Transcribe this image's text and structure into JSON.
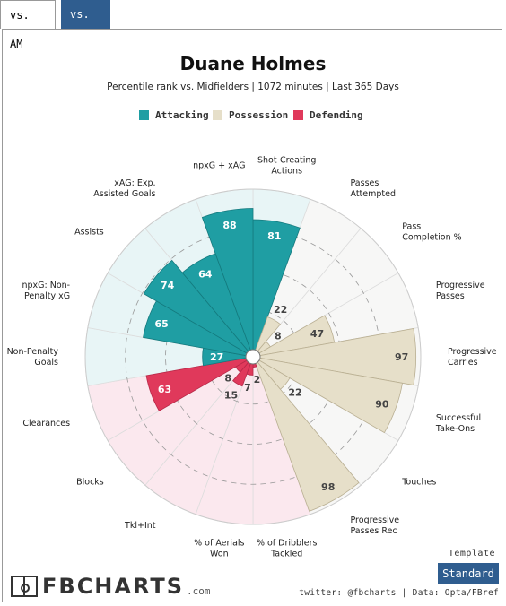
{
  "tabs": [
    {
      "label": "vs. AM",
      "active": false
    },
    {
      "label": "vs. MF",
      "active": true
    }
  ],
  "colors": {
    "attacking": "#1f9ea3",
    "possession": "#e6dfc9",
    "defending": "#e0395b",
    "attacking_bg": "#e8f5f6",
    "possession_bg": "#f7f7f6",
    "defending_bg": "#fbe8ee",
    "tab_active": "#2f5d8f"
  },
  "chart_data": {
    "type": "polar-bar",
    "title": "Duane Holmes",
    "subtitle": "Percentile rank vs. Midfielders | 1072 minutes | Last 365 Days",
    "range": [
      0,
      100
    ],
    "legend": [
      {
        "name": "Attacking",
        "color_key": "attacking"
      },
      {
        "name": "Possession",
        "color_key": "possession"
      },
      {
        "name": "Defending",
        "color_key": "defending"
      }
    ],
    "metrics": [
      {
        "label": "Shot-Creating Actions",
        "lines": [
          "Shot-Creating",
          "Actions"
        ],
        "value": 81,
        "group": "attacking"
      },
      {
        "label": "Passes Attempted",
        "lines": [
          "Passes",
          "Attempted"
        ],
        "value": 22,
        "group": "possession"
      },
      {
        "label": "Pass Completion %",
        "lines": [
          "Pass",
          "Completion %"
        ],
        "value": 8,
        "group": "possession"
      },
      {
        "label": "Progressive Passes",
        "lines": [
          "Progressive",
          "Passes"
        ],
        "value": 47,
        "group": "possession"
      },
      {
        "label": "Progressive Carries",
        "lines": [
          "Progressive",
          "Carries"
        ],
        "value": 97,
        "group": "possession"
      },
      {
        "label": "Successful Take-Ons",
        "lines": [
          "Successful",
          "Take-Ons"
        ],
        "value": 90,
        "group": "possession"
      },
      {
        "label": "Touches",
        "lines": [
          "Touches"
        ],
        "value": 22,
        "group": "possession"
      },
      {
        "label": "Progressive Passes Rec",
        "lines": [
          "Progressive",
          "Passes Rec"
        ],
        "value": 98,
        "group": "possession"
      },
      {
        "label": "% of Dribblers Tackled",
        "lines": [
          "% of Dribblers",
          "Tackled"
        ],
        "value": 2,
        "group": "defending"
      },
      {
        "label": "% of Aerials Won",
        "lines": [
          "% of Aerials",
          "Won"
        ],
        "value": 7,
        "group": "defending"
      },
      {
        "label": "Tkl+Int",
        "lines": [
          "Tkl+Int"
        ],
        "value": 15,
        "group": "defending"
      },
      {
        "label": "Blocks",
        "lines": [
          "Blocks"
        ],
        "value": 8,
        "group": "defending"
      },
      {
        "label": "Clearances",
        "lines": [
          "Clearances"
        ],
        "value": 63,
        "group": "defending"
      },
      {
        "label": "Non-Penalty Goals",
        "lines": [
          "Non-Penalty",
          "Goals"
        ],
        "value": 27,
        "group": "attacking"
      },
      {
        "label": "npxG: Non-Penalty xG",
        "lines": [
          "npxG: Non-",
          "Penalty xG"
        ],
        "value": 65,
        "group": "attacking"
      },
      {
        "label": "Assists",
        "lines": [
          "Assists"
        ],
        "value": 74,
        "group": "attacking"
      },
      {
        "label": "xAG: Exp. Assisted Goals",
        "lines": [
          "xAG: Exp.",
          "Assisted Goals"
        ],
        "value": 64,
        "group": "attacking"
      },
      {
        "label": "npxG + xAG",
        "lines": [
          "npxG + xAG"
        ],
        "value": 88,
        "group": "attacking"
      }
    ]
  },
  "footer": {
    "template_label": "Template",
    "standard_button": "Standard",
    "credit": "twitter: @fbcharts | Data: Opta/FBref",
    "logo_text": "FBCHARTS",
    "logo_suffix": ".com"
  }
}
